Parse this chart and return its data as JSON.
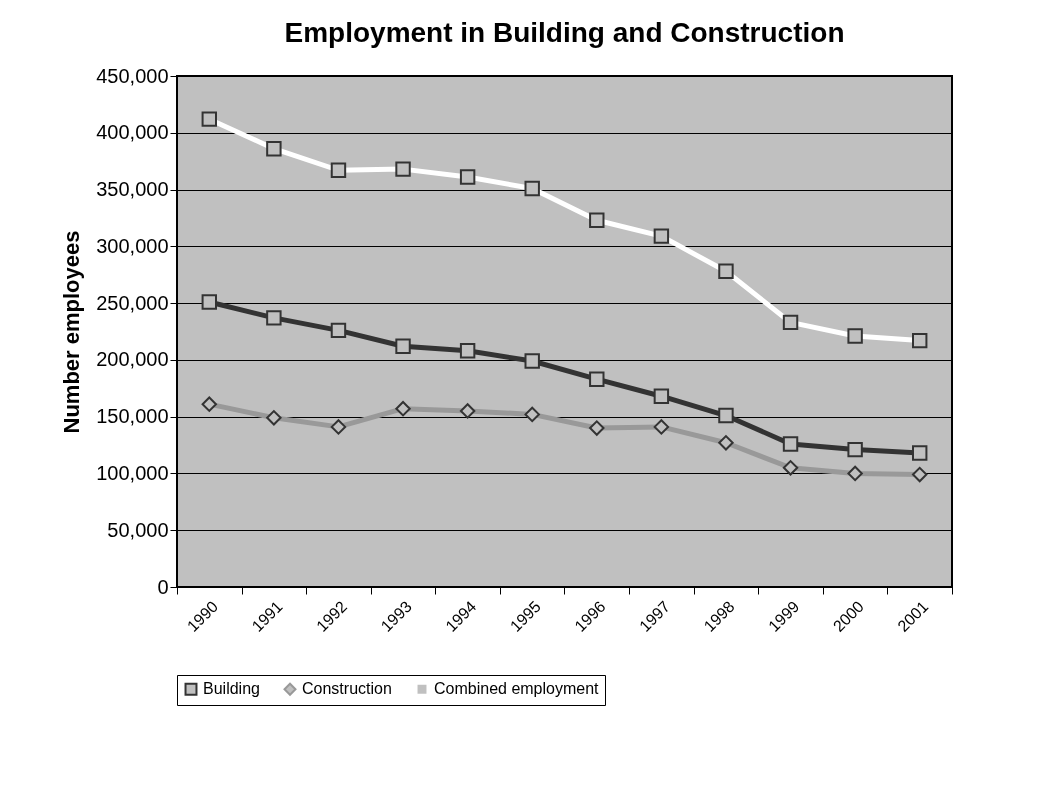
{
  "chart_data": {
    "type": "line",
    "title": "Employment in Building and Construction",
    "ylabel": "Number employees",
    "categories": [
      "1990",
      "1991",
      "1992",
      "1993",
      "1994",
      "1995",
      "1996",
      "1997",
      "1998",
      "1999",
      "2000",
      "2001"
    ],
    "series": [
      {
        "name": "Building",
        "color": "#333333",
        "marker": "square",
        "values": [
          251000,
          237000,
          226000,
          212000,
          208000,
          199000,
          183000,
          168000,
          151000,
          126000,
          121000,
          118000
        ]
      },
      {
        "name": "Construction",
        "color": "#999999",
        "marker": "diamond",
        "values": [
          161000,
          149000,
          141000,
          157000,
          155000,
          152000,
          140000,
          141000,
          127000,
          105000,
          100000,
          99000
        ]
      },
      {
        "name": "Combined employment",
        "color": "#ffffff",
        "marker": "square",
        "values": [
          412000,
          386000,
          367000,
          368000,
          361000,
          351000,
          323000,
          309000,
          278000,
          233000,
          221000,
          217000
        ]
      }
    ],
    "ylim": [
      0,
      450000
    ],
    "yticks": [
      0,
      {
        "value": 50000,
        "label": "50,000"
      },
      {
        "value": 100000,
        "label": "100,000"
      },
      {
        "value": 150000,
        "label": "150,000"
      },
      {
        "value": 200000,
        "label": "200,000"
      },
      {
        "value": 250000,
        "label": "250,000"
      },
      {
        "value": 300000,
        "label": "300,000"
      },
      {
        "value": 350000,
        "label": "350,000"
      },
      {
        "value": 400000,
        "label": "400,000"
      },
      {
        "value": 450000,
        "label": "450,000"
      }
    ],
    "grid": "y",
    "legend": "bottom",
    "line_style": "solid"
  }
}
